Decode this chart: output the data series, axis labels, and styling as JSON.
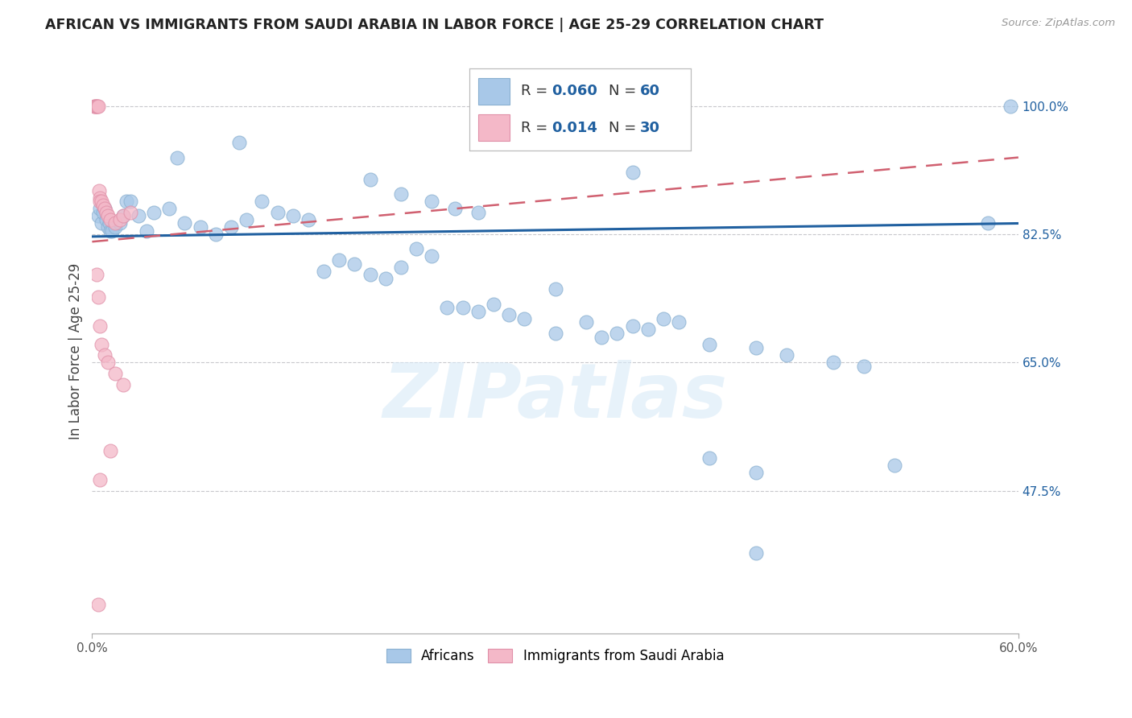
{
  "title": "AFRICAN VS IMMIGRANTS FROM SAUDI ARABIA IN LABOR FORCE | AGE 25-29 CORRELATION CHART",
  "source": "Source: ZipAtlas.com",
  "ylabel": "In Labor Force | Age 25-29",
  "ytick_vals": [
    100.0,
    82.5,
    65.0,
    47.5
  ],
  "ytick_labels": [
    "100.0%",
    "82.5%",
    "65.0%",
    "47.5%"
  ],
  "xmin": 0.0,
  "xmax": 60.0,
  "ymin": 28.0,
  "ymax": 105.0,
  "legend_r1_val": "0.060",
  "legend_n1_val": "60",
  "legend_r2_val": "0.014",
  "legend_n2_val": "30",
  "blue_scatter_color": "#a8c8e8",
  "pink_scatter_color": "#f4b8c8",
  "blue_line_color": "#2060a0",
  "pink_line_color": "#d06070",
  "africans_x": [
    0.4,
    0.5,
    0.6,
    0.7,
    0.8,
    0.9,
    1.0,
    1.1,
    1.2,
    1.3,
    1.5,
    1.8,
    2.0,
    2.2,
    2.5,
    3.0,
    3.5,
    4.0,
    5.0,
    6.0,
    7.0,
    8.0,
    9.0,
    10.0,
    11.0,
    12.0,
    13.0,
    14.0,
    15.0,
    16.0,
    17.0,
    18.0,
    19.0,
    20.0,
    21.0,
    22.0,
    23.0,
    24.0,
    25.0,
    26.0,
    27.0,
    28.0,
    30.0,
    32.0,
    33.0,
    34.0,
    35.0,
    36.0,
    37.0,
    38.0,
    40.0,
    43.0,
    45.0,
    48.0,
    50.0,
    52.0,
    43.0,
    58.0,
    59.5,
    35.0
  ],
  "africans_y": [
    85.0,
    86.0,
    84.0,
    85.5,
    86.0,
    84.5,
    83.5,
    84.0,
    83.0,
    83.0,
    83.5,
    84.0,
    85.0,
    87.0,
    87.0,
    85.0,
    83.0,
    85.5,
    86.0,
    84.0,
    83.5,
    82.5,
    83.5,
    84.5,
    87.0,
    85.5,
    85.0,
    84.5,
    77.5,
    79.0,
    78.5,
    77.0,
    76.5,
    78.0,
    80.5,
    79.5,
    72.5,
    72.5,
    72.0,
    73.0,
    71.5,
    71.0,
    69.0,
    70.5,
    68.5,
    69.0,
    70.0,
    69.5,
    71.0,
    70.5,
    67.5,
    67.0,
    66.0,
    65.0,
    64.5,
    51.0,
    50.0,
    84.0,
    100.0,
    91.0
  ],
  "africans_x2": [
    5.5,
    9.5,
    18.0,
    20.0,
    22.0,
    23.5,
    25.0,
    30.0,
    40.0,
    43.0
  ],
  "africans_y2": [
    93.0,
    95.0,
    90.0,
    88.0,
    87.0,
    86.0,
    85.5,
    75.0,
    52.0,
    39.0
  ],
  "saudi_x": [
    0.15,
    0.2,
    0.25,
    0.3,
    0.35,
    0.4,
    0.45,
    0.5,
    0.5,
    0.6,
    0.7,
    0.8,
    0.9,
    1.0,
    1.2,
    1.5,
    1.8,
    2.0,
    2.5,
    0.3,
    0.4,
    0.5,
    0.6,
    0.8,
    1.0,
    1.5,
    2.0,
    1.2,
    0.5,
    0.4
  ],
  "saudi_y": [
    100.0,
    100.0,
    100.0,
    100.0,
    100.0,
    100.0,
    88.5,
    87.5,
    87.0,
    87.0,
    86.5,
    86.0,
    85.5,
    85.0,
    84.5,
    84.0,
    84.5,
    85.0,
    85.5,
    77.0,
    74.0,
    70.0,
    67.5,
    66.0,
    65.0,
    63.5,
    62.0,
    53.0,
    49.0,
    32.0
  ],
  "watermark_text": "ZIPatlas",
  "bottom_legend_labels": [
    "Africans",
    "Immigrants from Saudi Arabia"
  ]
}
